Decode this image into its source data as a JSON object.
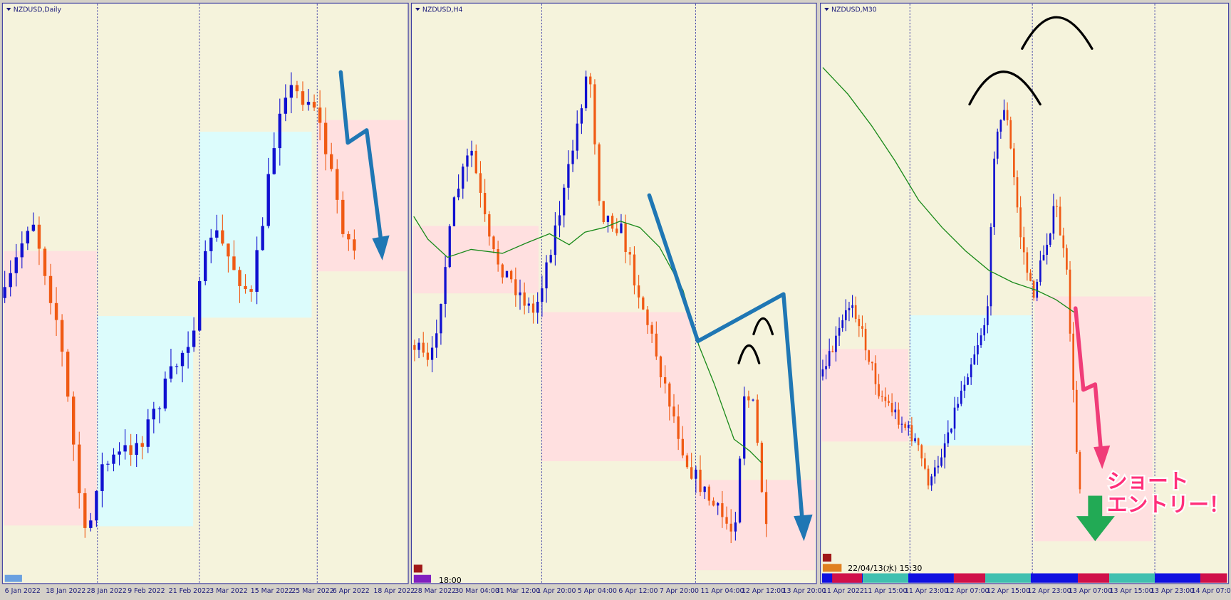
{
  "panels": [
    {
      "title": "NZDUSD,Daily",
      "x_labels": [
        "6 Jan 2022",
        "18 Jan 2022",
        "28 Jan 2022",
        "9 Feb 2022",
        "21 Feb 2022",
        "3 Mar 2022",
        "15 Mar 2022",
        "25 Mar 2022",
        "6 Apr 2022",
        "18 Apr 2022"
      ]
    },
    {
      "title": "NZDUSD,H4",
      "time_label": "18:00",
      "x_labels": [
        "28 Mar 2022",
        "30 Mar 04:00",
        "31 Mar 12:00",
        "1 Apr 20:00",
        "5 Apr 04:00",
        "6 Apr 12:00",
        "7 Apr 20:00",
        "11 Apr 04:00",
        "12 Apr 12:00",
        "13 Apr 20:00"
      ]
    },
    {
      "title": "NZDUSD,M30",
      "time_label": "22/04/13(水) 15:30",
      "x_labels": [
        "11 Apr 2022",
        "11 Apr 15:00",
        "11 Apr 23:00",
        "12 Apr 07:00",
        "12 Apr 15:00",
        "12 Apr 23:00",
        "13 Apr 07:00",
        "13 Apr 15:00",
        "13 Apr 23:00",
        "14 Apr 07:00"
      ],
      "annotation_lines": [
        "ショート",
        "エントリー！"
      ]
    }
  ]
}
